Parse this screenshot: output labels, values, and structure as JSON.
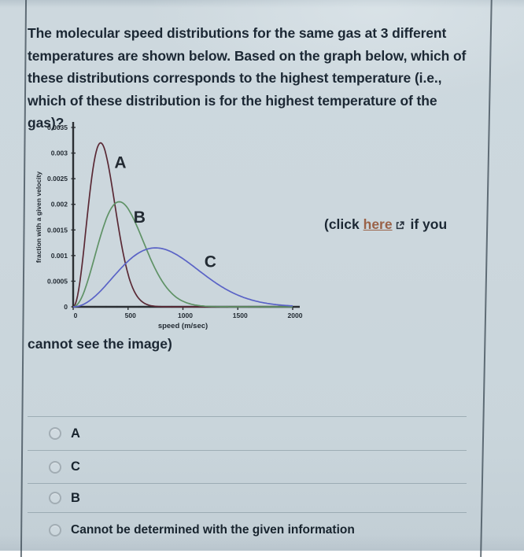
{
  "question": {
    "text": "The molecular speed distributions for the same gas at 3 different temperatures are shown below. Based on the graph below, which of these distributions corresponds to the highest temperature (i.e., which of these distribution is for the highest temperature of the gas)?"
  },
  "fallback": {
    "prefix": "(click",
    "link_text": "here",
    "suffix": "if you",
    "continuation": "cannot see the image)"
  },
  "options": [
    {
      "label": "A",
      "selected": false
    },
    {
      "label": "C",
      "selected": false
    },
    {
      "label": "B",
      "selected": false
    },
    {
      "label": "Cannot be determined with the given information",
      "selected": false
    }
  ],
  "colors": {
    "page_text": "#1c2834",
    "link": "#9a6248",
    "axis": "#2b2f33",
    "curve_a": "#5a2935",
    "curve_b": "#5f9266",
    "curve_c": "#5a63c6"
  },
  "chart_data": {
    "type": "line",
    "title": "",
    "xlabel": "speed (m/sec)",
    "ylabel": "fraction with a given velocity",
    "xlim": [
      0,
      2000
    ],
    "ylim": [
      0,
      0.0035
    ],
    "grid": false,
    "legend": "curve labels drawn beside each curve",
    "xticks": [
      {
        "v": 0,
        "label": "0"
      },
      {
        "v": 500,
        "label": "500"
      },
      {
        "v": 1000,
        "label": "1000"
      },
      {
        "v": 1500,
        "label": "1500"
      },
      {
        "v": 2000,
        "label": "2000"
      }
    ],
    "x_minor_tick_step": 100,
    "yticks": [
      {
        "v": 0,
        "label": "0"
      },
      {
        "v": 0.0005,
        "label": "0.0005"
      },
      {
        "v": 0.001,
        "label": "0.001"
      },
      {
        "v": 0.0015,
        "label": "0.0015"
      },
      {
        "v": 0.002,
        "label": "0.002"
      },
      {
        "v": 0.0025,
        "label": "0.0025"
      },
      {
        "v": 0.003,
        "label": "0.003"
      },
      {
        "v": 0.0035,
        "label": "0.0035"
      }
    ],
    "model": "maxwell-boltzmann f(v) = peak_fraction * (v/peak_speed)^2 * exp(1 - (v/peak_speed)^2)",
    "series": [
      {
        "name": "A",
        "color": "#5a2935",
        "peak_speed": 250,
        "peak_fraction": 0.0032,
        "label_pos": {
          "v": 430,
          "f": 0.00282
        },
        "points_x": [
          0,
          100,
          200,
          250,
          300,
          400,
          500,
          600,
          700,
          800,
          900
        ],
        "points_y": [
          0,
          0.00119,
          0.00294,
          0.0032,
          0.00297,
          0.00172,
          0.00064,
          0.00016,
          3e-05,
          0,
          0
        ]
      },
      {
        "name": "B",
        "color": "#5f9266",
        "peak_speed": 420,
        "peak_fraction": 0.00205,
        "label_pos": {
          "v": 605,
          "f": 0.00175
        },
        "points_x": [
          0,
          100,
          200,
          300,
          400,
          420,
          500,
          600,
          700,
          800,
          900,
          1000,
          1100,
          1200,
          1300
        ],
        "points_y": [
          0,
          0.0003,
          0.00101,
          0.00171,
          0.00204,
          0.00205,
          0.00191,
          0.00148,
          0.00096,
          0.00054,
          0.00026,
          0.00011,
          4e-05,
          1e-05,
          0
        ]
      },
      {
        "name": "C",
        "color": "#5a63c6",
        "peak_speed": 750,
        "peak_fraction": 0.00115,
        "label_pos": {
          "v": 1250,
          "f": 0.00088
        },
        "points_x": [
          0,
          200,
          400,
          600,
          750,
          800,
          1000,
          1200,
          1400,
          1600,
          1800,
          2000
        ],
        "points_y": [
          0,
          0.00021,
          0.00067,
          0.00106,
          0.00115,
          0.00114,
          0.00094,
          0.00062,
          0.00033,
          0.00015,
          6e-05,
          2e-05
        ]
      }
    ]
  }
}
